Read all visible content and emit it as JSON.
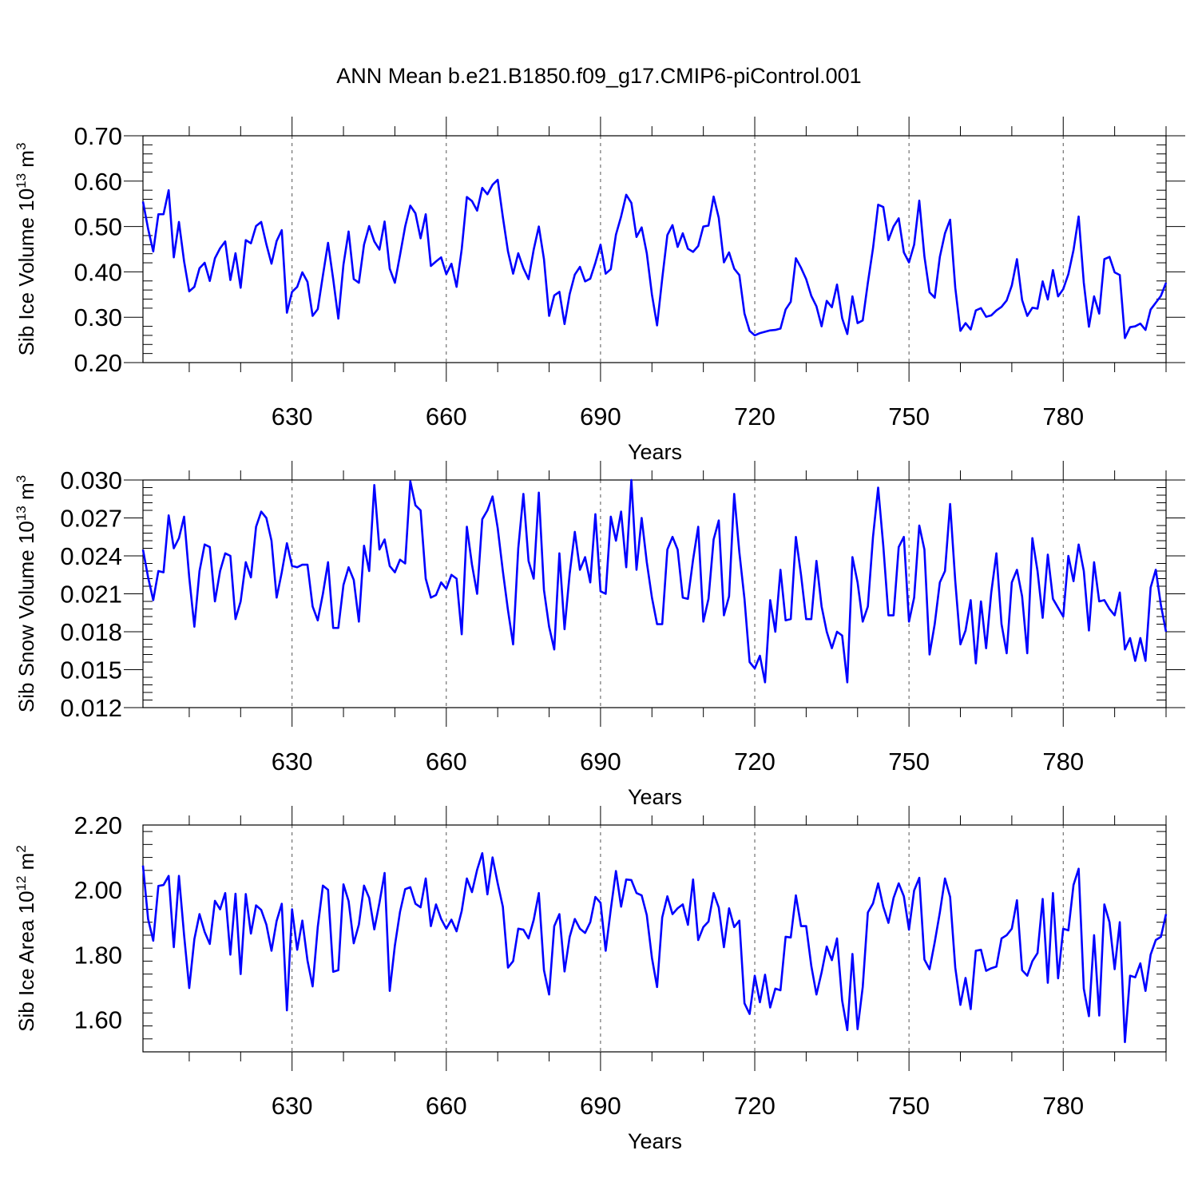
{
  "title": "ANN Mean b.e21.B1850.f09_g17.CMIP6-piControl.001",
  "colors": {
    "series": "#0000ff",
    "axis": "#000000",
    "grid": "#555555"
  },
  "chart_data": [
    {
      "type": "line",
      "ylabel_base": "Sib Ice Volume 10",
      "ylabel_exp": "13",
      "ylabel_unit": " m",
      "ylabel_unit_exp": "3",
      "xlabel": "Years",
      "xlim": [
        601,
        800
      ],
      "ylim": [
        0.2,
        0.7
      ],
      "yticks": [
        0.2,
        0.3,
        0.4,
        0.5,
        0.6,
        0.7
      ],
      "ytick_labels": [
        "0.20",
        "0.30",
        "0.40",
        "0.50",
        "0.60",
        "0.70"
      ],
      "xticks": [
        630,
        660,
        690,
        720,
        750,
        780
      ],
      "xtick_labels": [
        "630",
        "660",
        "690",
        "720",
        "750",
        "780"
      ],
      "x_start": 601,
      "values": [
        0.555,
        0.495,
        0.445,
        0.527,
        0.527,
        0.58,
        0.432,
        0.51,
        0.423,
        0.357,
        0.367,
        0.408,
        0.42,
        0.38,
        0.43,
        0.452,
        0.467,
        0.382,
        0.441,
        0.365,
        0.47,
        0.463,
        0.501,
        0.51,
        0.461,
        0.418,
        0.468,
        0.492,
        0.31,
        0.356,
        0.367,
        0.399,
        0.378,
        0.303,
        0.318,
        0.392,
        0.464,
        0.384,
        0.297,
        0.416,
        0.489,
        0.384,
        0.376,
        0.46,
        0.501,
        0.467,
        0.449,
        0.511,
        0.407,
        0.376,
        0.437,
        0.5,
        0.546,
        0.529,
        0.474,
        0.527,
        0.413,
        0.423,
        0.432,
        0.395,
        0.418,
        0.367,
        0.45,
        0.565,
        0.556,
        0.535,
        0.585,
        0.571,
        0.592,
        0.603,
        0.521,
        0.445,
        0.396,
        0.441,
        0.408,
        0.384,
        0.449,
        0.5,
        0.428,
        0.303,
        0.348,
        0.356,
        0.285,
        0.351,
        0.394,
        0.411,
        0.379,
        0.385,
        0.42,
        0.46,
        0.396,
        0.406,
        0.482,
        0.522,
        0.57,
        0.552,
        0.477,
        0.498,
        0.441,
        0.35,
        0.282,
        0.385,
        0.481,
        0.503,
        0.455,
        0.485,
        0.451,
        0.444,
        0.457,
        0.5,
        0.502,
        0.566,
        0.519,
        0.421,
        0.443,
        0.407,
        0.393,
        0.308,
        0.27,
        0.26,
        0.265,
        0.268,
        0.271,
        0.272,
        0.275,
        0.317,
        0.334,
        0.43,
        0.409,
        0.384,
        0.347,
        0.324,
        0.28,
        0.336,
        0.322,
        0.372,
        0.298,
        0.263,
        0.346,
        0.287,
        0.293,
        0.376,
        0.452,
        0.548,
        0.543,
        0.47,
        0.5,
        0.518,
        0.443,
        0.421,
        0.46,
        0.557,
        0.434,
        0.355,
        0.343,
        0.433,
        0.485,
        0.515,
        0.365,
        0.27,
        0.287,
        0.273,
        0.315,
        0.32,
        0.301,
        0.304,
        0.315,
        0.323,
        0.337,
        0.37,
        0.428,
        0.338,
        0.303,
        0.321,
        0.319,
        0.379,
        0.339,
        0.404,
        0.346,
        0.362,
        0.395,
        0.448,
        0.522,
        0.376,
        0.279,
        0.346,
        0.308,
        0.428,
        0.433,
        0.399,
        0.393,
        0.254,
        0.278,
        0.28,
        0.286,
        0.272,
        0.317,
        0.332,
        0.347,
        0.376
      ]
    },
    {
      "type": "line",
      "ylabel_base": "Sib Snow Volume 10",
      "ylabel_exp": "13",
      "ylabel_unit": " m",
      "ylabel_unit_exp": "3",
      "xlabel": "Years",
      "xlim": [
        601,
        800
      ],
      "ylim": [
        0.012,
        0.03
      ],
      "yticks": [
        0.012,
        0.015,
        0.018,
        0.021,
        0.024,
        0.027,
        0.03
      ],
      "ytick_labels": [
        "0.012",
        "0.015",
        "0.018",
        "0.021",
        "0.024",
        "0.027",
        "0.030"
      ],
      "xticks": [
        630,
        660,
        690,
        720,
        750,
        780
      ],
      "xtick_labels": [
        "630",
        "660",
        "690",
        "720",
        "750",
        "780"
      ],
      "x_start": 601,
      "values": [
        0.0245,
        0.0223,
        0.0205,
        0.0228,
        0.0227,
        0.0272,
        0.0246,
        0.0254,
        0.0271,
        0.0223,
        0.0184,
        0.0228,
        0.0249,
        0.0247,
        0.0204,
        0.0228,
        0.0242,
        0.024,
        0.019,
        0.0204,
        0.0235,
        0.0223,
        0.0263,
        0.0275,
        0.027,
        0.0252,
        0.0207,
        0.0227,
        0.025,
        0.0232,
        0.0231,
        0.0233,
        0.0233,
        0.02,
        0.0189,
        0.021,
        0.0235,
        0.0183,
        0.0183,
        0.0217,
        0.0231,
        0.0221,
        0.0188,
        0.0248,
        0.0228,
        0.0296,
        0.0245,
        0.0253,
        0.0232,
        0.0227,
        0.0237,
        0.0234,
        0.0299,
        0.028,
        0.0276,
        0.0222,
        0.0207,
        0.0209,
        0.0219,
        0.0214,
        0.0225,
        0.0222,
        0.0178,
        0.0263,
        0.0233,
        0.021,
        0.0269,
        0.0276,
        0.0287,
        0.0262,
        0.0228,
        0.0197,
        0.017,
        0.0246,
        0.0289,
        0.0236,
        0.0222,
        0.029,
        0.0213,
        0.0184,
        0.0166,
        0.0242,
        0.0182,
        0.0226,
        0.0259,
        0.0229,
        0.0239,
        0.0219,
        0.0273,
        0.0212,
        0.021,
        0.0271,
        0.0252,
        0.0275,
        0.0231,
        0.03,
        0.0229,
        0.027,
        0.0235,
        0.0207,
        0.0186,
        0.0186,
        0.0245,
        0.0255,
        0.0245,
        0.0207,
        0.0206,
        0.0237,
        0.0263,
        0.0188,
        0.0206,
        0.0253,
        0.0268,
        0.0193,
        0.0208,
        0.0289,
        0.0243,
        0.0206,
        0.0156,
        0.0151,
        0.0161,
        0.014,
        0.0205,
        0.018,
        0.0229,
        0.0189,
        0.019,
        0.0255,
        0.0225,
        0.019,
        0.019,
        0.0236,
        0.02,
        0.018,
        0.0167,
        0.018,
        0.0177,
        0.014,
        0.0239,
        0.0219,
        0.0188,
        0.02,
        0.0255,
        0.0294,
        0.0248,
        0.0193,
        0.0193,
        0.0247,
        0.0255,
        0.0188,
        0.0207,
        0.0264,
        0.0245,
        0.0162,
        0.0186,
        0.0219,
        0.0228,
        0.0281,
        0.022,
        0.017,
        0.0181,
        0.0205,
        0.0155,
        0.0204,
        0.0167,
        0.0211,
        0.0242,
        0.0186,
        0.0163,
        0.0219,
        0.0229,
        0.0208,
        0.0163,
        0.0254,
        0.0228,
        0.0191,
        0.0241,
        0.0206,
        0.0199,
        0.0192,
        0.024,
        0.022,
        0.0249,
        0.0228,
        0.0181,
        0.0235,
        0.0204,
        0.0205,
        0.0198,
        0.0193,
        0.0211,
        0.0166,
        0.0175,
        0.0157,
        0.0175,
        0.0157,
        0.0215,
        0.0229,
        0.0201,
        0.018
      ]
    },
    {
      "type": "line",
      "ylabel_base": "Sib Ice Area 10",
      "ylabel_exp": "12",
      "ylabel_unit": " m",
      "ylabel_unit_exp": "2",
      "xlabel": "Years",
      "xlim": [
        601,
        800
      ],
      "ylim": [
        1.5,
        2.2
      ],
      "yticks": [
        1.6,
        1.8,
        2.0,
        2.2
      ],
      "ytick_labels": [
        "1.60",
        "1.80",
        "2.00",
        "2.20"
      ],
      "xticks": [
        630,
        660,
        690,
        720,
        750,
        780
      ],
      "xtick_labels": [
        "630",
        "660",
        "690",
        "720",
        "750",
        "780"
      ],
      "x_start": 601,
      "values": [
        2.075,
        1.91,
        1.843,
        2.012,
        2.015,
        2.043,
        1.823,
        2.043,
        1.86,
        1.697,
        1.848,
        1.925,
        1.87,
        1.833,
        1.966,
        1.94,
        1.99,
        1.8,
        1.988,
        1.74,
        1.987,
        1.865,
        1.952,
        1.938,
        1.893,
        1.812,
        1.904,
        1.957,
        1.628,
        1.94,
        1.815,
        1.905,
        1.782,
        1.702,
        1.885,
        2.013,
        2.0,
        1.747,
        1.752,
        2.017,
        1.965,
        1.835,
        1.893,
        2.013,
        1.975,
        1.878,
        1.96,
        2.052,
        1.688,
        1.828,
        1.932,
        2.002,
        2.008,
        1.957,
        1.946,
        2.035,
        1.888,
        1.955,
        1.91,
        1.88,
        1.908,
        1.872,
        1.935,
        2.035,
        1.993,
        2.062,
        2.113,
        1.986,
        2.1,
        2.02,
        1.948,
        1.76,
        1.78,
        1.88,
        1.877,
        1.85,
        1.907,
        1.99,
        1.752,
        1.677,
        1.888,
        1.925,
        1.748,
        1.855,
        1.91,
        1.88,
        1.867,
        1.9,
        1.978,
        1.96,
        1.812,
        1.94,
        2.058,
        1.948,
        2.032,
        2.03,
        1.99,
        1.983,
        1.922,
        1.79,
        1.7,
        1.915,
        1.98,
        1.925,
        1.943,
        1.955,
        1.892,
        2.032,
        1.845,
        1.885,
        1.902,
        1.99,
        1.945,
        1.823,
        1.943,
        1.885,
        1.905,
        1.65,
        1.617,
        1.735,
        1.653,
        1.738,
        1.637,
        1.695,
        1.69,
        1.855,
        1.853,
        1.983,
        1.888,
        1.888,
        1.765,
        1.677,
        1.745,
        1.825,
        1.783,
        1.85,
        1.658,
        1.567,
        1.802,
        1.57,
        1.7,
        1.93,
        1.958,
        2.02,
        1.948,
        1.898,
        1.975,
        2.02,
        1.98,
        1.877,
        1.998,
        2.037,
        1.785,
        1.755,
        1.838,
        1.93,
        2.035,
        1.978,
        1.76,
        1.645,
        1.728,
        1.632,
        1.812,
        1.815,
        1.75,
        1.758,
        1.763,
        1.85,
        1.86,
        1.88,
        1.968,
        1.752,
        1.735,
        1.78,
        1.805,
        1.972,
        1.713,
        1.99,
        1.727,
        1.88,
        1.875,
        2.015,
        2.065,
        1.695,
        1.61,
        1.86,
        1.612,
        1.955,
        1.9,
        1.755,
        1.9,
        1.53,
        1.735,
        1.73,
        1.773,
        1.688,
        1.8,
        1.845,
        1.855,
        1.925
      ]
    }
  ]
}
